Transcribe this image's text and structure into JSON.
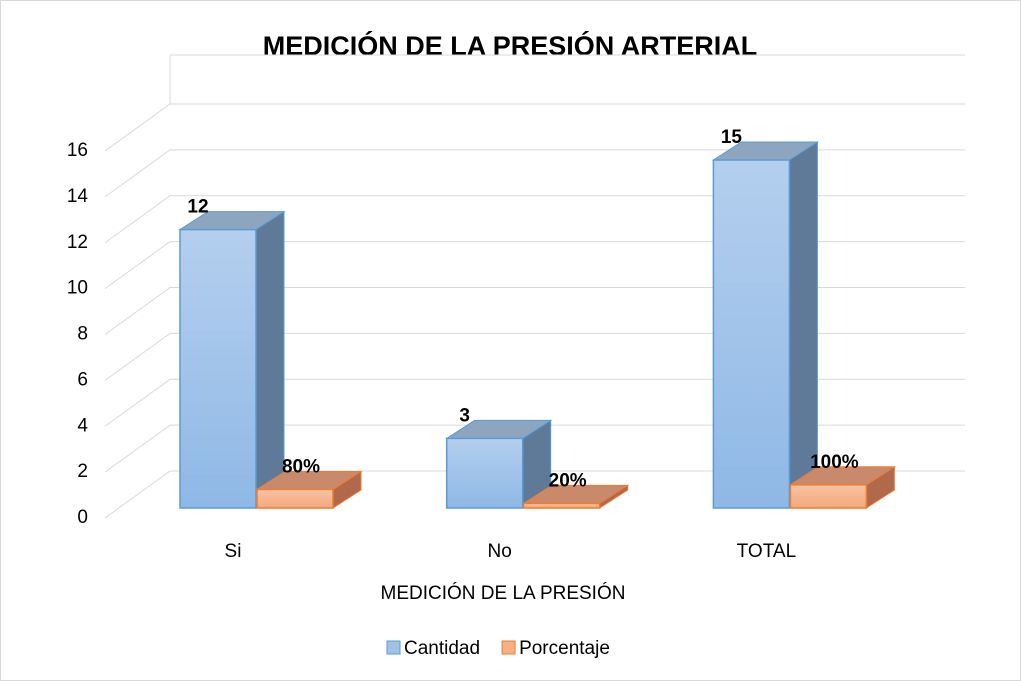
{
  "chart_data": {
    "type": "bar3d",
    "title": "MEDICIÓN DE LA PRESIÓN ARTERIAL",
    "x_label": "MEDICIÓN DE LA PRESIÓN",
    "categories": [
      "Si",
      "No",
      "TOTAL"
    ],
    "series": [
      {
        "name": "Cantidad",
        "color": "#9dc3e6",
        "values": [
          12,
          3,
          15
        ],
        "value_labels": [
          "12",
          "3",
          "15"
        ]
      },
      {
        "name": "Porcentaje",
        "color": "#f4b183",
        "values": [
          0.8,
          0.2,
          1
        ],
        "value_labels": [
          "80%",
          "20%",
          "100%"
        ]
      }
    ],
    "ylim": [
      0,
      16
    ],
    "yticks": [
      0,
      2,
      4,
      6,
      8,
      10,
      12,
      14,
      16
    ],
    "grid": true,
    "legend": "bottom"
  }
}
